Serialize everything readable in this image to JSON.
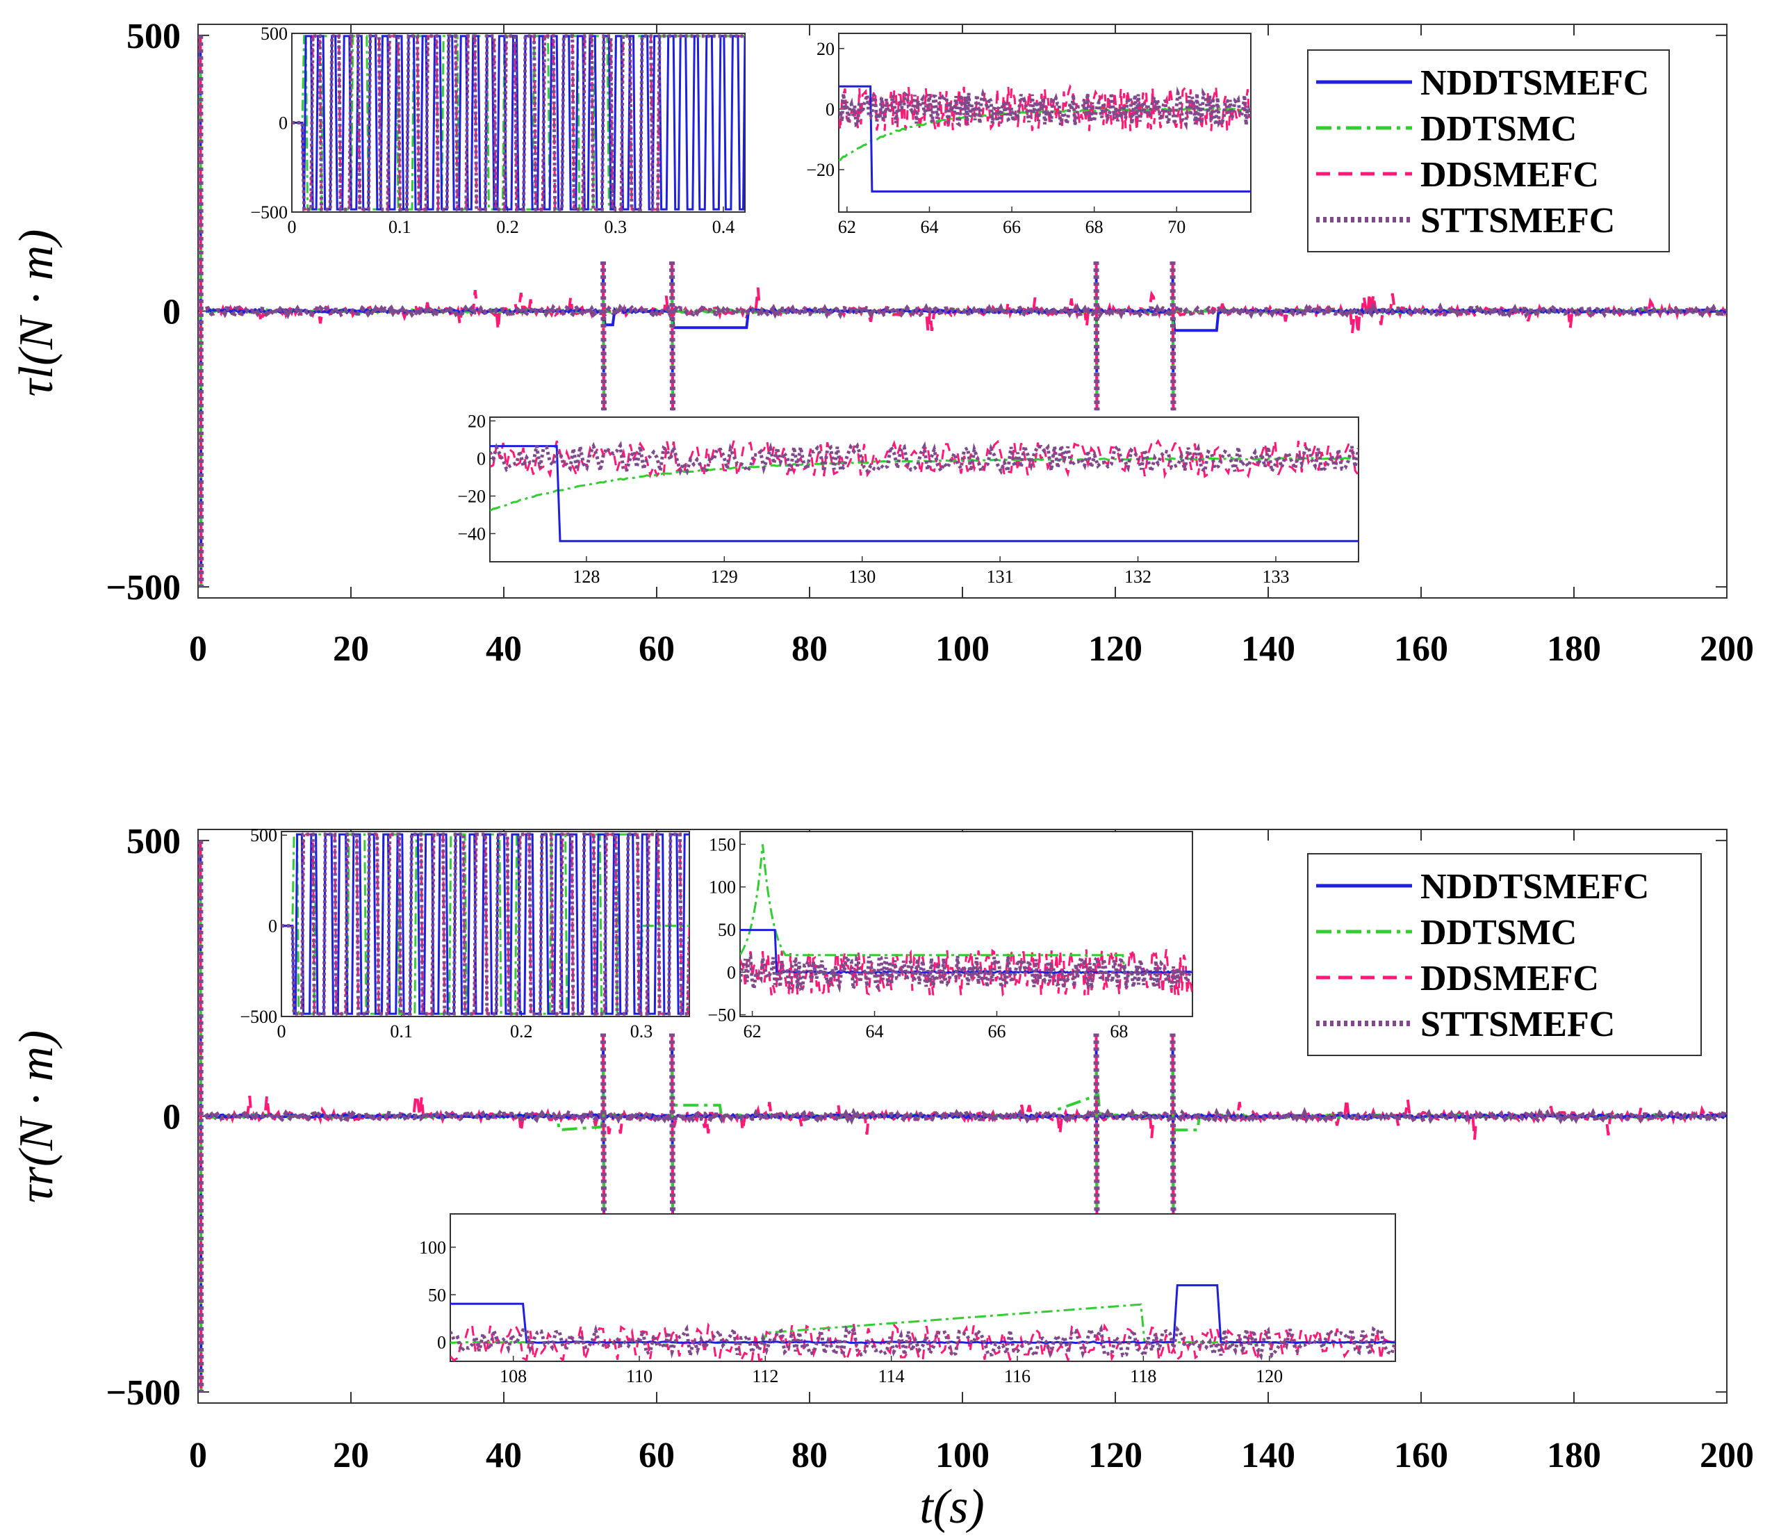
{
  "chart_data": [
    {
      "type": "line",
      "id": "top",
      "ylabel": "τl(N · m)",
      "xlabel": "",
      "xlim": [
        0,
        200
      ],
      "ylim": [
        -520,
        520
      ],
      "xticks": [
        "0",
        "20",
        "40",
        "60",
        "80",
        "100",
        "120",
        "140",
        "160",
        "180",
        "200"
      ],
      "yticks": [
        "500",
        "0",
        "−500"
      ],
      "legend": {
        "position": "top-right",
        "entries": [
          "NDDTSMEFC",
          "DDTSMC",
          "DDSMEFC",
          "STTSMEFC"
        ]
      },
      "series": [
        {
          "name": "NDDTSMEFC",
          "color": "#1f1fe0",
          "style": "solid"
        },
        {
          "name": "DDTSMC",
          "color": "#33cc33",
          "style": "dashdot"
        },
        {
          "name": "DDSMEFC",
          "color": "#ff1a75",
          "style": "dashed"
        },
        {
          "name": "STTSMEFC",
          "color": "#7e4a8c",
          "style": "dotted"
        }
      ],
      "spikes_at": [
        0.3,
        53,
        62,
        117.5,
        127.5
      ],
      "step_segments": [
        {
          "series": "NDDTSMEFC",
          "x": [
            53,
            54.5
          ],
          "y": -25
        },
        {
          "series": "NDDTSMEFC",
          "x": [
            62,
            72
          ],
          "y": -30
        },
        {
          "series": "NDDTSMEFC",
          "x": [
            127.5,
            133.3
          ],
          "y": -35
        }
      ],
      "insets": [
        {
          "id": "top-inset-1",
          "xlim": [
            0,
            0.42
          ],
          "ylim": [
            -500,
            500
          ],
          "xticks": [
            "0",
            "0.1",
            "0.2",
            "0.3",
            "0.4"
          ],
          "yticks": [
            "500",
            "0",
            "−500"
          ]
        },
        {
          "id": "top-inset-2",
          "xlim": [
            61.8,
            71.8
          ],
          "ylim": [
            -34,
            25
          ],
          "xticks": [
            "62",
            "64",
            "66",
            "68",
            "70"
          ],
          "yticks": [
            "20",
            "0",
            "−20"
          ]
        },
        {
          "id": "top-inset-3",
          "xlim": [
            127.3,
            133.6
          ],
          "ylim": [
            -55,
            22
          ],
          "xticks": [
            "128",
            "129",
            "130",
            "131",
            "132",
            "133"
          ],
          "yticks": [
            "20",
            "0",
            "−20",
            "−40"
          ]
        }
      ]
    },
    {
      "type": "line",
      "id": "bottom",
      "ylabel": "τr(N · m)",
      "xlabel": "t(s)",
      "xlim": [
        0,
        200
      ],
      "ylim": [
        -520,
        520
      ],
      "xticks": [
        "0",
        "20",
        "40",
        "60",
        "80",
        "100",
        "120",
        "140",
        "160",
        "180",
        "200"
      ],
      "yticks": [
        "500",
        "0",
        "−500"
      ],
      "legend": {
        "position": "top-right",
        "entries": [
          "NDDTSMEFC",
          "DDTSMC",
          "DDSMEFC",
          "STTSMEFC"
        ]
      },
      "series": [
        {
          "name": "NDDTSMEFC",
          "color": "#1f1fe0",
          "style": "solid"
        },
        {
          "name": "DDTSMC",
          "color": "#33cc33",
          "style": "dashdot"
        },
        {
          "name": "DDSMEFC",
          "color": "#ff1a75",
          "style": "dashed"
        },
        {
          "name": "STTSMEFC",
          "color": "#7e4a8c",
          "style": "dotted"
        }
      ],
      "spikes_at": [
        0.3,
        53,
        62,
        117.5,
        127.5
      ],
      "insets": [
        {
          "id": "bot-inset-1",
          "xlim": [
            0,
            0.34
          ],
          "ylim": [
            -500,
            520
          ],
          "xticks": [
            "0",
            "0.1",
            "0.2",
            "0.3"
          ],
          "yticks": [
            "500",
            "0",
            "−500"
          ]
        },
        {
          "id": "bot-inset-2",
          "xlim": [
            61.8,
            69.2
          ],
          "ylim": [
            -52,
            165
          ],
          "xticks": [
            "62",
            "64",
            "66",
            "68"
          ],
          "yticks": [
            "150",
            "100",
            "50",
            "0",
            "−50"
          ]
        },
        {
          "id": "bot-inset-3",
          "xlim": [
            107,
            122
          ],
          "ylim": [
            -20,
            135
          ],
          "xticks": [
            "108",
            "110",
            "112",
            "114",
            "116",
            "118",
            "120"
          ],
          "yticks": [
            "100",
            "50",
            "0"
          ]
        }
      ]
    }
  ]
}
